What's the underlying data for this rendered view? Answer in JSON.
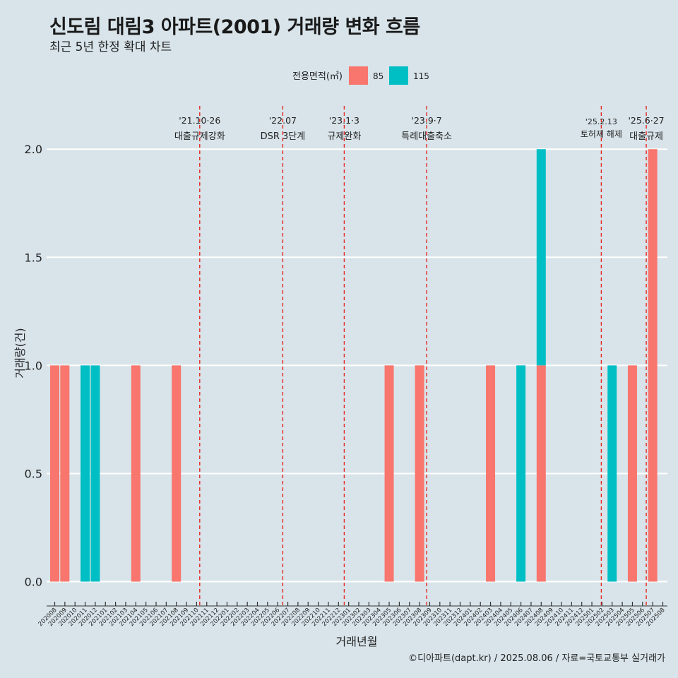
{
  "chart_data": {
    "type": "bar",
    "title": "신도림 대림3 아파트(2001) 거래량 변화 흐름",
    "subtitle": "최근 5년 한정 확대 차트",
    "xlabel": "거래년월",
    "ylabel": "거래량(건)",
    "caption": "©디아파트(dapt.kr) / 2025.08.06 / 자료=국토교통부 실거래가",
    "legend": {
      "title": "전용면적(㎡)",
      "placement": "top"
    },
    "ylim": [
      -0.08,
      2.2
    ],
    "yticks": [
      {
        "value": 0,
        "label": "0.0"
      },
      {
        "value": 0.5,
        "label": "0.5"
      },
      {
        "value": 1,
        "label": "1.0"
      },
      {
        "value": 1.5,
        "label": "1.5"
      },
      {
        "value": 2,
        "label": "2.0"
      }
    ],
    "categories": [
      "202008",
      "202009",
      "202010",
      "202011",
      "202012",
      "202101",
      "202102",
      "202103",
      "202104",
      "202105",
      "202106",
      "202107",
      "202108",
      "202109",
      "202110",
      "202111",
      "202112",
      "202201",
      "202202",
      "202203",
      "202204",
      "202205",
      "202206",
      "202207",
      "202208",
      "202209",
      "202210",
      "202211",
      "202212",
      "202301",
      "202302",
      "202303",
      "202304",
      "202305",
      "202306",
      "202307",
      "202308",
      "202309",
      "202310",
      "202311",
      "202312",
      "202401",
      "202402",
      "202403",
      "202404",
      "202405",
      "202406",
      "202407",
      "202408",
      "202409",
      "202410",
      "202411",
      "202412",
      "202501",
      "202502",
      "202503",
      "202504",
      "202505",
      "202506",
      "202507",
      "202508"
    ],
    "series": [
      {
        "name": "85",
        "color": "#f8766d",
        "values": [
          1,
          1,
          0,
          0,
          0,
          0,
          0,
          0,
          1,
          0,
          0,
          0,
          1,
          0,
          0,
          0,
          0,
          0,
          0,
          0,
          0,
          0,
          0,
          0,
          0,
          0,
          0,
          0,
          0,
          0,
          0,
          0,
          0,
          1,
          0,
          0,
          1,
          0,
          0,
          0,
          0,
          0,
          0,
          1,
          0,
          0,
          0,
          0,
          1,
          0,
          0,
          0,
          0,
          0,
          0,
          0,
          0,
          1,
          0,
          2,
          0
        ]
      },
      {
        "name": "115",
        "color": "#00bfc4",
        "values": [
          0,
          0,
          0,
          1,
          1,
          0,
          0,
          0,
          0,
          0,
          0,
          0,
          0,
          0,
          0,
          0,
          0,
          0,
          0,
          0,
          0,
          0,
          0,
          0,
          0,
          0,
          0,
          0,
          0,
          0,
          0,
          0,
          0,
          0,
          0,
          0,
          0,
          0,
          0,
          0,
          0,
          0,
          0,
          0,
          0,
          0,
          1,
          0,
          1,
          0,
          0,
          0,
          0,
          0,
          0,
          1,
          0,
          0,
          0,
          0,
          0
        ]
      }
    ],
    "events": [
      {
        "date": "2021-10-26",
        "label": "'21.10·26",
        "desc": "대출규제강화"
      },
      {
        "date": "2022-07",
        "label": "'22.07",
        "desc": "DSR 3단계"
      },
      {
        "date": "2023-01-03",
        "label": "'23.1·3",
        "desc": "규제완화"
      },
      {
        "date": "2023-09-07",
        "label": "'23.9·7",
        "desc": "특례대출축소"
      },
      {
        "date": "2025-02-13",
        "label": "'25.2.13",
        "desc": "토허제 해제"
      },
      {
        "date": "2025-06-27",
        "label": "'25.6·27",
        "desc": "대출규제"
      }
    ]
  }
}
